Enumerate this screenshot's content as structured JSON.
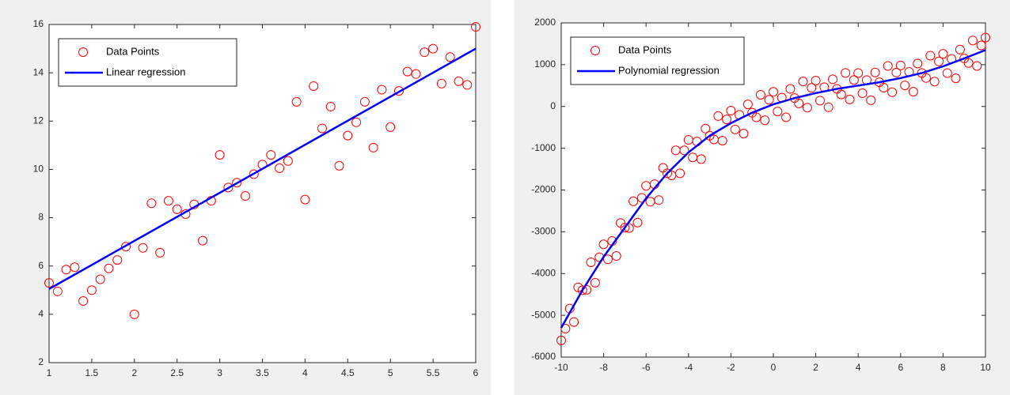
{
  "chart_data": [
    {
      "type": "scatter",
      "legend": "upper left",
      "grid": false,
      "xlim": [
        1,
        6
      ],
      "ylim": [
        2,
        16
      ],
      "xticks": [
        1,
        1.5,
        2,
        2.5,
        3,
        3.5,
        4,
        4.5,
        5,
        5.5,
        6
      ],
      "yticks": [
        2,
        4,
        6,
        8,
        10,
        12,
        14,
        16
      ],
      "series": [
        {
          "name": "Data Points",
          "color": "#ff0000",
          "style": "markers",
          "x": [
            1,
            1.1,
            1.2,
            1.3,
            1.4,
            1.5,
            1.6,
            1.7,
            1.8,
            1.9,
            2,
            2.1,
            2.2,
            2.3,
            2.4,
            2.5,
            2.6,
            2.7,
            2.8,
            2.9,
            3,
            3.1,
            3.2,
            3.3,
            3.4,
            3.5,
            3.6,
            3.7,
            3.8,
            3.9,
            4,
            4.1,
            4.2,
            4.3,
            4.4,
            4.5,
            4.6,
            4.7,
            4.8,
            4.9,
            5,
            5.1,
            5.2,
            5.3,
            5.4,
            5.5,
            5.6,
            5.7,
            5.8,
            5.9,
            6
          ],
          "values": [
            5.3,
            4.95,
            5.85,
            5.95,
            4.55,
            5.0,
            5.45,
            5.9,
            6.25,
            6.8,
            4.0,
            6.75,
            8.6,
            6.55,
            8.7,
            8.35,
            8.15,
            8.55,
            7.05,
            8.7,
            10.6,
            9.25,
            9.45,
            8.9,
            9.8,
            10.2,
            10.6,
            10.05,
            10.35,
            12.8,
            8.75,
            13.45,
            11.7,
            12.6,
            10.15,
            11.4,
            11.95,
            12.8,
            10.9,
            13.3,
            11.75,
            13.25,
            14.05,
            13.95,
            14.85,
            15.0,
            13.55,
            14.65,
            13.65,
            13.5,
            15.9
          ]
        },
        {
          "name": "Linear regression",
          "color": "#0000ff",
          "style": "line",
          "x": [
            1,
            6
          ],
          "values": [
            5.05,
            15.0
          ]
        }
      ]
    },
    {
      "type": "scatter",
      "legend": "upper left",
      "grid": false,
      "xlim": [
        -10,
        10
      ],
      "ylim": [
        -6000,
        2000
      ],
      "xticks": [
        -10,
        -8,
        -6,
        -4,
        -2,
        0,
        2,
        4,
        6,
        8,
        10
      ],
      "yticks": [
        -6000,
        -5000,
        -4000,
        -3000,
        -2000,
        -1000,
        0,
        1000,
        2000
      ],
      "series": [
        {
          "name": "Data Points",
          "color": "#ff0000",
          "style": "markers",
          "x": [
            -10,
            -9.8,
            -9.6,
            -9.4,
            -9.2,
            -9,
            -8.8,
            -8.6,
            -8.4,
            -8.2,
            -8,
            -7.8,
            -7.6,
            -7.4,
            -7.2,
            -7,
            -6.8,
            -6.6,
            -6.4,
            -6.2,
            -6,
            -5.8,
            -5.6,
            -5.4,
            -5.2,
            -5,
            -4.8,
            -4.6,
            -4.4,
            -4.2,
            -4,
            -3.8,
            -3.6,
            -3.4,
            -3.2,
            -3,
            -2.8,
            -2.6,
            -2.4,
            -2.2,
            -2,
            -1.8,
            -1.6,
            -1.4,
            -1.2,
            -1,
            -0.8,
            -0.6,
            -0.4,
            -0.2,
            0,
            0.2,
            0.4,
            0.6,
            0.8,
            1,
            1.2,
            1.4,
            1.6,
            1.8,
            2,
            2.2,
            2.4,
            2.6,
            2.8,
            3,
            3.2,
            3.4,
            3.6,
            3.8,
            4,
            4.2,
            4.4,
            4.6,
            4.8,
            5,
            5.2,
            5.4,
            5.6,
            5.8,
            6,
            6.2,
            6.4,
            6.6,
            6.8,
            7,
            7.2,
            7.4,
            7.6,
            7.8,
            8,
            8.2,
            8.4,
            8.6,
            8.8,
            9,
            9.2,
            9.4,
            9.6,
            9.8,
            10
          ],
          "values": [
            -5600,
            -5320,
            -4840,
            -5160,
            -4330,
            -4400,
            -4390,
            -3730,
            -4220,
            -3610,
            -3300,
            -3660,
            -3220,
            -3580,
            -2790,
            -2900,
            -2910,
            -2270,
            -2780,
            -2190,
            -1900,
            -2280,
            -1860,
            -2240,
            -1470,
            -1600,
            -1650,
            -1050,
            -1600,
            -1050,
            -800,
            -1220,
            -840,
            -1260,
            -530,
            -700,
            -790,
            -230,
            -820,
            -310,
            -100,
            -550,
            -200,
            -650,
            50,
            -150,
            -260,
            280,
            -330,
            160,
            350,
            -120,
            210,
            -260,
            420,
            200,
            74,
            598,
            -28,
            446,
            620,
            140,
            460,
            -20,
            650,
            420,
            286,
            802,
            168,
            634,
            800,
            316,
            632,
            148,
            814,
            580,
            450,
            970,
            340,
            810,
            980,
            504,
            828,
            352,
            1026,
            800,
            682,
            1214,
            596,
            1078,
            1260,
            798,
            1136,
            674,
            1362,
            1150,
            1040,
            1580,
            970,
            1460,
            1650
          ]
        },
        {
          "name": "Polynomial regression",
          "color": "#0000ff",
          "style": "line",
          "x": [
            -10,
            -9,
            -8,
            -7,
            -6,
            -5,
            -4,
            -3,
            -2,
            -1,
            0,
            1,
            2,
            3,
            4,
            5,
            6,
            7,
            8,
            9,
            10
          ],
          "values": [
            -5300,
            -4400,
            -3600,
            -2900,
            -2200,
            -1600,
            -1100,
            -700,
            -400,
            -150,
            50,
            200,
            320,
            420,
            500,
            580,
            680,
            800,
            960,
            1150,
            1350
          ]
        }
      ]
    }
  ]
}
